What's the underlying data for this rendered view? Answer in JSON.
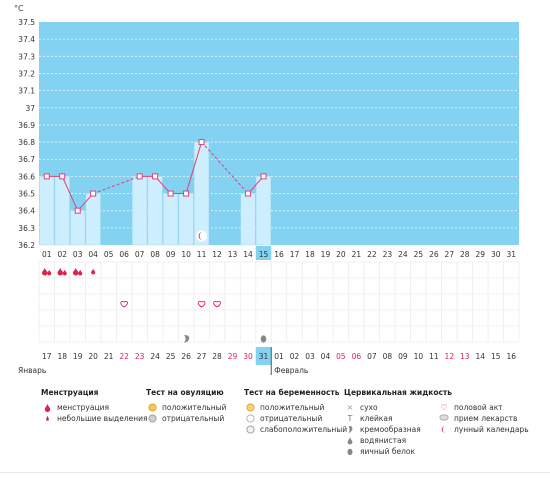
{
  "unit": "°C",
  "chart_data": {
    "type": "line",
    "ylim": [
      36.2,
      37.5
    ],
    "yticks": [
      "37.5",
      "37.4",
      "37.3",
      "37.2",
      "37.1",
      "37",
      "36.9",
      "36.8",
      "36.7",
      "36.6",
      "36.5",
      "36.4",
      "36.3",
      "36.2"
    ],
    "cycle_days": [
      "01",
      "02",
      "03",
      "04",
      "05",
      "06",
      "07",
      "08",
      "09",
      "10",
      "11",
      "12",
      "13",
      "14",
      "15",
      "16",
      "17",
      "18",
      "19",
      "20",
      "21",
      "22",
      "23",
      "24",
      "25",
      "26",
      "27",
      "28",
      "29",
      "30",
      "31"
    ],
    "highlight_day": "15",
    "calendar_days": [
      "17",
      "18",
      "19",
      "20",
      "21",
      "22",
      "23",
      "24",
      "25",
      "26",
      "27",
      "28",
      "29",
      "30",
      "31",
      "01",
      "02",
      "03",
      "04",
      "05",
      "06",
      "07",
      "08",
      "09",
      "10",
      "11",
      "12",
      "13",
      "14",
      "15",
      "16"
    ],
    "weekend_days": [
      5,
      6,
      12,
      13,
      19,
      20,
      26,
      27
    ],
    "today_index": 14,
    "temperatures": [
      36.6,
      36.6,
      36.4,
      36.5,
      null,
      null,
      36.6,
      36.6,
      36.5,
      36.5,
      36.8,
      null,
      null,
      36.5,
      36.6,
      null,
      null,
      null,
      null,
      null,
      null,
      null,
      null,
      null,
      null,
      null,
      null,
      null,
      null,
      null,
      null
    ],
    "month_left": "Январь",
    "month_right": "Февраль",
    "markers": {
      "menstruation_strong": [
        0,
        1,
        2
      ],
      "menstruation_light": [
        3
      ],
      "intercourse": [
        5,
        10,
        11
      ],
      "fluid_creamy": [
        9
      ],
      "fluid_eggwhite": [
        14
      ],
      "lunar_calendar": [
        10
      ]
    }
  },
  "legend": {
    "menstruation": {
      "title": "Менструация",
      "items": [
        "менструация",
        "небольшие выделения"
      ]
    },
    "ovulation": {
      "title": "Тест на овуляцию",
      "items": [
        "положительный",
        "отрицательный"
      ]
    },
    "pregnancy": {
      "title": "Тест на беременность",
      "items": [
        "положительный",
        "отрицательный",
        "слабоположительный"
      ]
    },
    "fluid": {
      "title": "Цервикальная жидкость",
      "items": [
        "сухо",
        "клейкая",
        "кремообразная",
        "водянистая",
        "яичный белок"
      ]
    },
    "other": {
      "items": [
        "половой акт",
        "прием лекарств",
        "лунный календарь"
      ]
    }
  },
  "colors": {
    "plot_bg": "#84d2f1",
    "bar_fill": "#cdeefc",
    "line": "#e0407a",
    "weekend": "#e0224e",
    "today_bg": "#84d2f1"
  }
}
